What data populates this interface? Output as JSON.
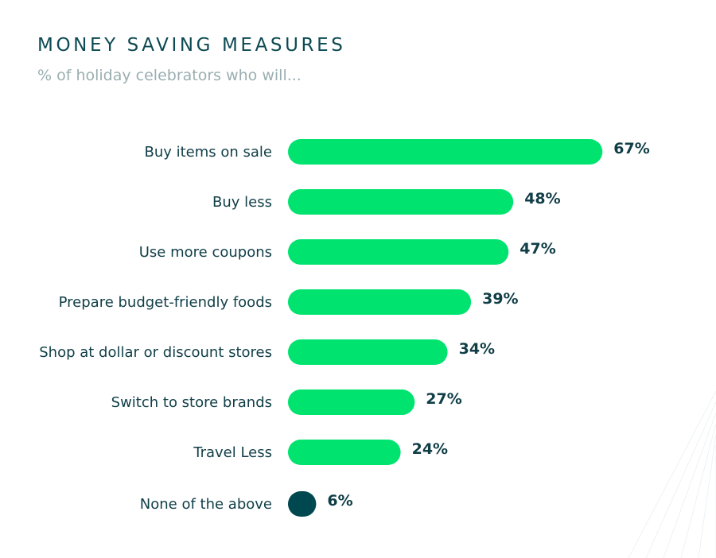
{
  "header": {
    "title": "MONEY SAVING MEASURES",
    "subtitle": "% of holiday celebrators who will..."
  },
  "colors": {
    "bar": "#00e36f",
    "bar_highlight": "#004850",
    "text": "#103e47",
    "subtitle": "#9aaeb1"
  },
  "chart_data": {
    "type": "bar",
    "orientation": "horizontal",
    "title": "MONEY SAVING MEASURES",
    "subtitle": "% of holiday celebrators who will...",
    "categories": [
      "Buy items on sale",
      "Buy less",
      "Use more coupons",
      "Prepare budget-friendly foods",
      "Shop at dollar or discount stores",
      "Switch to store brands",
      "Travel Less",
      "None of the above"
    ],
    "values": [
      67,
      48,
      47,
      39,
      34,
      27,
      24,
      6
    ],
    "value_labels": [
      "67%",
      "48%",
      "47%",
      "39%",
      "34%",
      "27%",
      "24%",
      "6%"
    ],
    "xlim": [
      0,
      100
    ],
    "grid": false,
    "legend": "none"
  }
}
